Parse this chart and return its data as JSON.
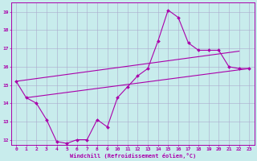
{
  "xlabel": "Windchill (Refroidissement éolien,°C)",
  "xlim": [
    -0.5,
    23.5
  ],
  "ylim": [
    11.7,
    19.5
  ],
  "yticks": [
    12,
    13,
    14,
    15,
    16,
    17,
    18,
    19
  ],
  "xticks": [
    0,
    1,
    2,
    3,
    4,
    5,
    6,
    7,
    8,
    9,
    10,
    11,
    12,
    13,
    14,
    15,
    16,
    17,
    18,
    19,
    20,
    21,
    22,
    23
  ],
  "line_color": "#aa00aa",
  "bg_color": "#c8ecec",
  "grid_color": "#aaaacc",
  "line1_x": [
    0,
    1,
    2,
    3,
    4,
    5,
    6,
    7,
    8,
    9,
    10,
    11,
    12,
    13,
    14,
    15,
    16,
    17,
    18,
    19,
    20,
    21,
    22,
    23
  ],
  "line1_y": [
    15.2,
    14.3,
    14.0,
    13.1,
    11.9,
    11.8,
    12.0,
    12.0,
    13.1,
    12.7,
    14.3,
    14.9,
    15.5,
    15.9,
    17.4,
    19.1,
    18.7,
    17.3,
    16.9,
    16.9,
    16.9,
    16.0,
    15.9,
    15.9
  ],
  "line2_x": [
    1,
    23
  ],
  "line2_y": [
    14.3,
    15.9
  ],
  "line3_x": [
    0,
    22
  ],
  "line3_y": [
    15.2,
    16.85
  ]
}
